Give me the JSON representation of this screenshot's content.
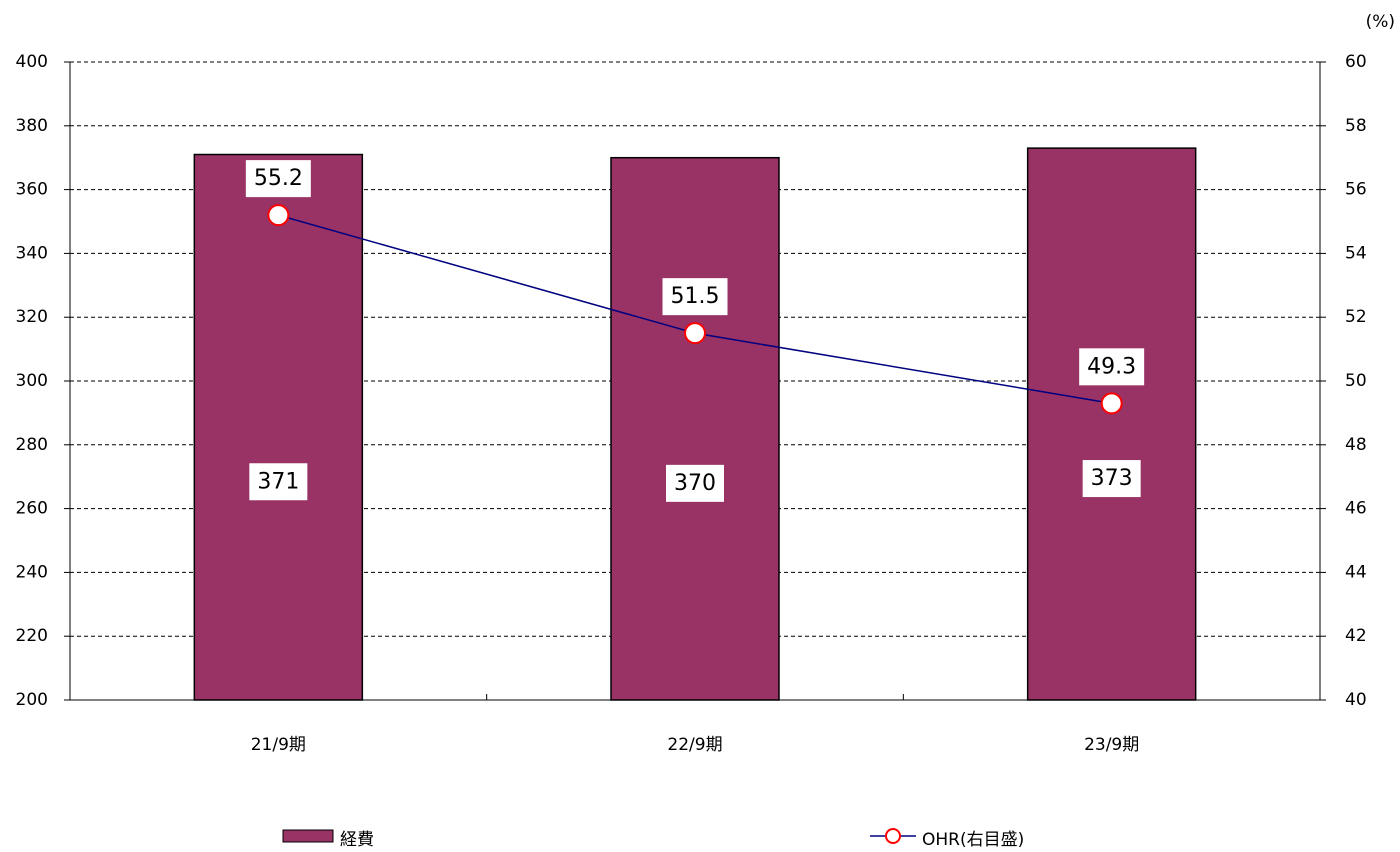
{
  "chart_data": {
    "type": "bar",
    "categories": [
      "21/9期",
      "22/9期",
      "23/9期"
    ],
    "series": [
      {
        "name": "経費",
        "type": "bar",
        "color": "#993366",
        "values": [
          371,
          370,
          373
        ]
      },
      {
        "name": "OHR(右目盛)",
        "type": "line",
        "color": "#000080",
        "marker_color": "#ff0000",
        "axis": "y2",
        "values": [
          55.2,
          51.5,
          49.3
        ]
      }
    ],
    "ylim": [
      200,
      400
    ],
    "yticks": [
      200,
      220,
      240,
      260,
      280,
      300,
      320,
      340,
      360,
      380,
      400
    ],
    "y2lim": [
      40,
      60
    ],
    "y2ticks": [
      40,
      42,
      44,
      46,
      48,
      50,
      52,
      54,
      56,
      58,
      60
    ],
    "y2label": "(%)",
    "grid": true,
    "legend": "bottom"
  }
}
